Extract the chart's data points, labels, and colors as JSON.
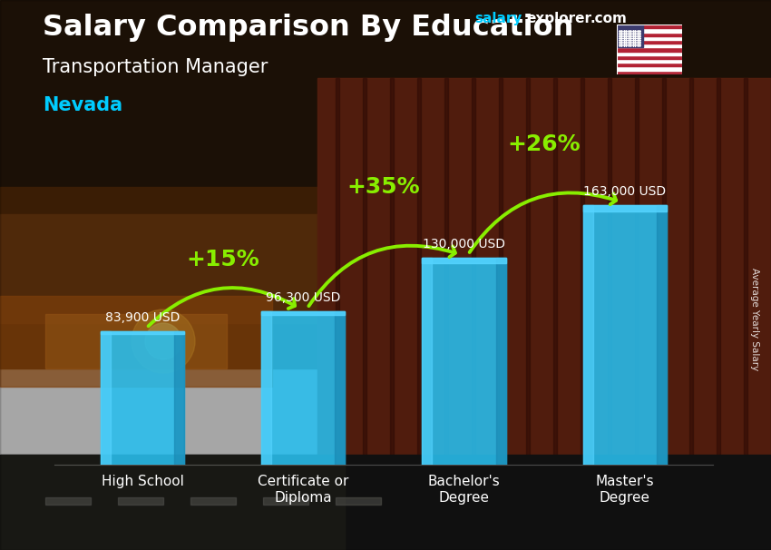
{
  "title_line1": "Salary Comparison By Education",
  "subtitle": "Transportation Manager",
  "location": "Nevada",
  "ylabel": "Average Yearly Salary",
  "categories": [
    "High School",
    "Certificate or\nDiploma",
    "Bachelor's\nDegree",
    "Master's\nDegree"
  ],
  "values": [
    83900,
    96300,
    130000,
    163000
  ],
  "value_labels": [
    "83,900 USD",
    "96,300 USD",
    "130,000 USD",
    "163,000 USD"
  ],
  "pct_labels": [
    "+15%",
    "+35%",
    "+26%"
  ],
  "bar_color": "#29BFEF",
  "bar_color_light": "#55D4FF",
  "bar_color_dark": "#1A8AB5",
  "pct_color": "#88EE00",
  "title_color": "#FFFFFF",
  "subtitle_color": "#FFFFFF",
  "location_color": "#00CCFF",
  "value_label_color": "#FFFFFF",
  "site_salary_color": "#00CCFF",
  "site_explorer_color": "#FFFFFF",
  "ylim_max": 195000,
  "bg_sky_top": "#3a2010",
  "bg_sky_mid": "#7a4010",
  "bg_sky_sun": "#D08020",
  "bg_road": "#2a2a2a",
  "bg_truck": "#6a2010"
}
